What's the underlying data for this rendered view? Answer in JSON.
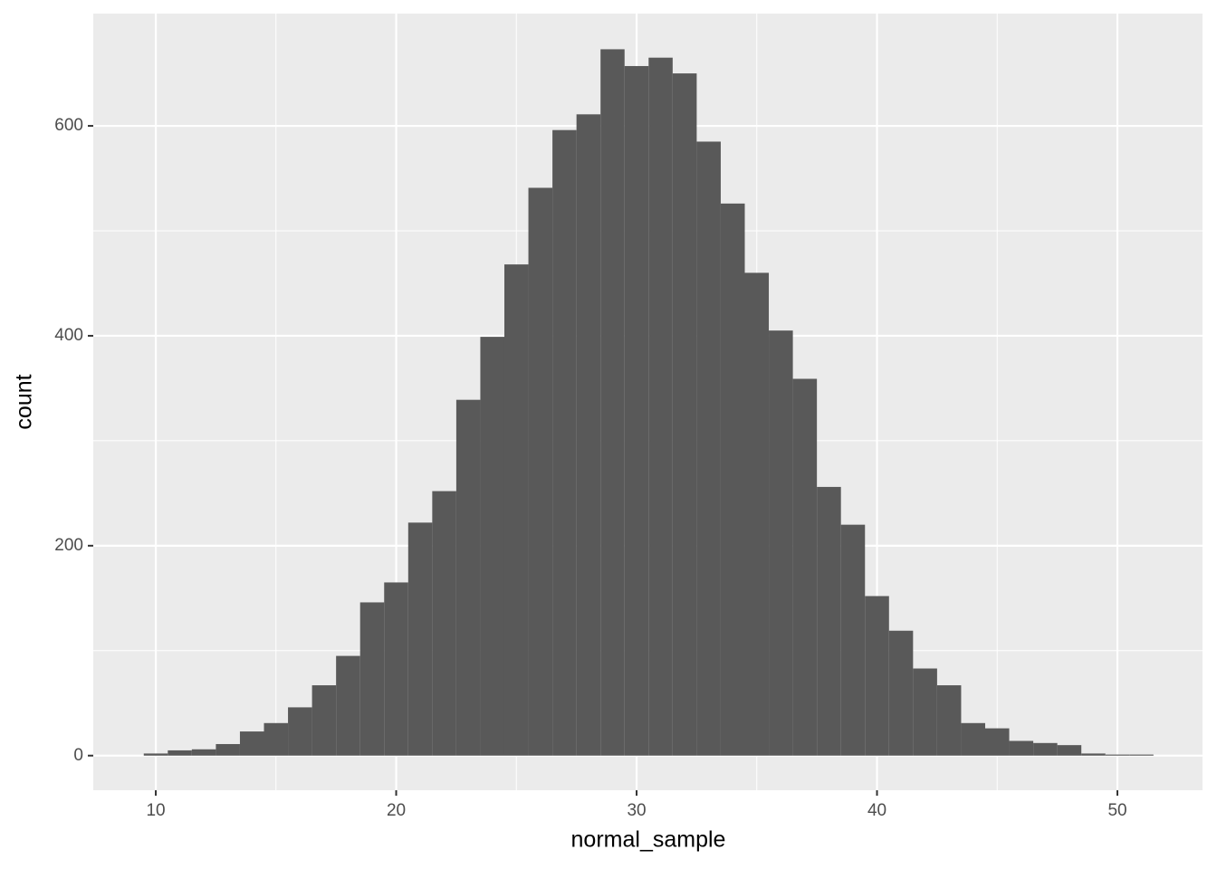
{
  "chart_data": {
    "type": "histogram",
    "x_label": "normal_sample",
    "y_label": "count",
    "bins": [
      9.5,
      10.5,
      11.5,
      12.5,
      13.5,
      14.5,
      15.5,
      16.5,
      17.5,
      18.5,
      19.5,
      20.5,
      21.5,
      22.5,
      23.5,
      24.5,
      25.5,
      26.5,
      27.5,
      28.5,
      29.5,
      30.5,
      31.5,
      32.5,
      33.5,
      34.5,
      35.5,
      36.5,
      37.5,
      38.5,
      39.5,
      40.5,
      41.5,
      42.5,
      43.5,
      44.5,
      45.5,
      46.5,
      47.5,
      48.5,
      49.5,
      50.5,
      51.5
    ],
    "counts": [
      2,
      5,
      6,
      11,
      23,
      31,
      46,
      67,
      95,
      146,
      165,
      222,
      252,
      339,
      399,
      468,
      541,
      596,
      611,
      673,
      657,
      665,
      650,
      585,
      526,
      460,
      405,
      359,
      256,
      220,
      152,
      119,
      83,
      67,
      31,
      26,
      14,
      12,
      10,
      2,
      1,
      1
    ],
    "color": "#595959",
    "xlim": [
      7.4,
      53.54
    ],
    "ylim": [
      -33,
      707
    ],
    "xticks": [
      10,
      20,
      30,
      40,
      50
    ],
    "yticks": [
      0,
      200,
      400,
      600
    ],
    "x_minor_ticks": [
      15,
      25,
      35,
      45
    ],
    "y_minor_ticks": [
      100,
      300,
      500
    ],
    "grid": true
  }
}
